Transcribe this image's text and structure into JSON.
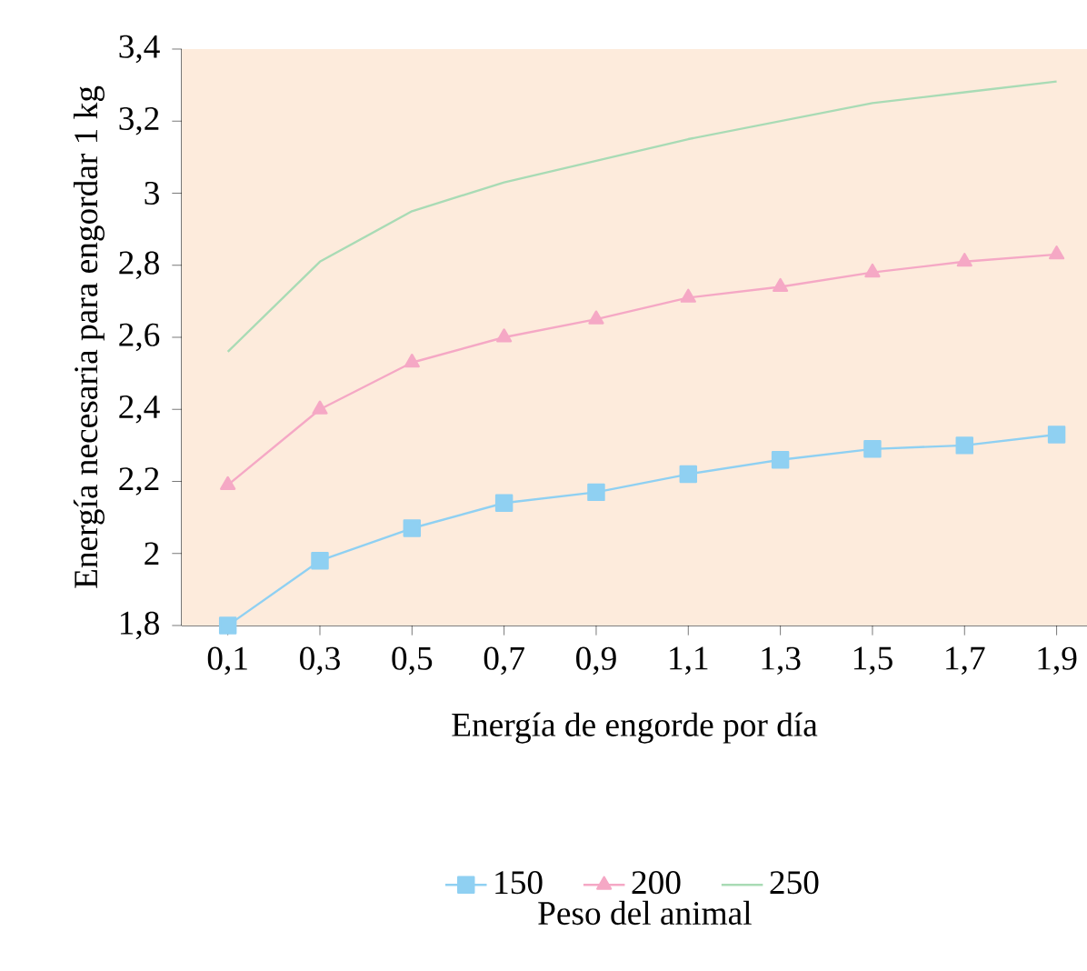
{
  "chart_data": {
    "type": "line",
    "xlabel": "Energía de engorde por día",
    "ylabel": "Energía necesaria para engordar 1 kg",
    "legend_title": "Peso del animal",
    "categories": [
      "0,1",
      "0,3",
      "0,5",
      "0,7",
      "0,9",
      "1,1",
      "1,3",
      "1,5",
      "1,7",
      "1,9"
    ],
    "series": [
      {
        "name": "150",
        "color": "#8fd0f2",
        "marker": "square",
        "values": [
          1.8,
          1.98,
          2.07,
          2.14,
          2.17,
          2.22,
          2.26,
          2.29,
          2.3,
          2.33
        ]
      },
      {
        "name": "200",
        "color": "#f5a8c5",
        "marker": "triangle",
        "values": [
          2.19,
          2.4,
          2.53,
          2.6,
          2.65,
          2.71,
          2.74,
          2.78,
          2.81,
          2.83
        ]
      },
      {
        "name": "250",
        "color": "#a9dbb5",
        "marker": "none",
        "values": [
          2.56,
          2.81,
          2.95,
          3.03,
          3.09,
          3.15,
          3.2,
          3.25,
          3.28,
          3.31
        ]
      }
    ],
    "ylim": [
      1.8,
      3.4
    ],
    "yticks": [
      {
        "value": 1.8,
        "label": "1,8"
      },
      {
        "value": 2,
        "label": "2"
      },
      {
        "value": 2.2,
        "label": "2,2"
      },
      {
        "value": 2.4,
        "label": "2,4"
      },
      {
        "value": 2.6,
        "label": "2,6"
      },
      {
        "value": 2.8,
        "label": "2,8"
      },
      {
        "value": 3,
        "label": "3"
      },
      {
        "value": 3.2,
        "label": "3,2"
      },
      {
        "value": 3.4,
        "label": "3,4"
      }
    ],
    "grid": false,
    "legend": "bottom"
  }
}
